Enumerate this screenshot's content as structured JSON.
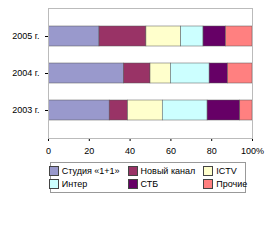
{
  "chart_data": {
    "type": "bar",
    "orientation": "horizontal",
    "stacked": true,
    "categories": [
      "2005 г.",
      "2004 г.",
      "2003 г."
    ],
    "series": [
      {
        "name": "Студия «1+1»",
        "color": "#9999cc",
        "values": [
          25,
          37,
          30
        ]
      },
      {
        "name": "Новый канал",
        "color": "#993366",
        "values": [
          23,
          13,
          9
        ]
      },
      {
        "name": "ICTV",
        "color": "#ffffcc",
        "values": [
          17,
          10,
          17
        ]
      },
      {
        "name": "Интер",
        "color": "#ccffff",
        "values": [
          11,
          19,
          22
        ]
      },
      {
        "name": "СТБ",
        "color": "#660066",
        "values": [
          11,
          9,
          16
        ]
      },
      {
        "name": "Прочие",
        "color": "#ff8080",
        "values": [
          13,
          12,
          6
        ]
      }
    ],
    "xlim": [
      0,
      100
    ],
    "xticks": [
      0,
      20,
      40,
      60,
      80,
      {
        "value": 100,
        "label": "100%"
      }
    ],
    "grid": false,
    "legend": "bottom"
  }
}
